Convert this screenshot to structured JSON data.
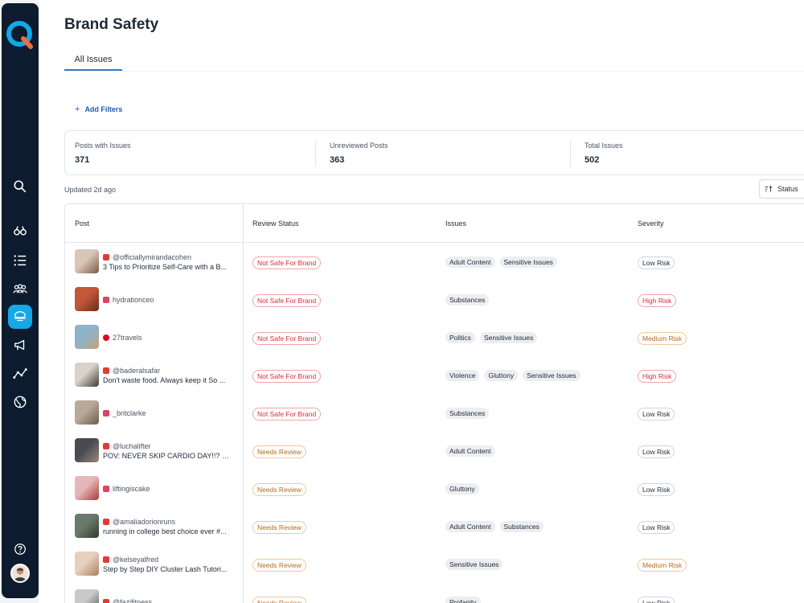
{
  "page": {
    "title": "Brand Safety"
  },
  "tabs": [
    {
      "label": "All Issues",
      "active": true
    }
  ],
  "filters": {
    "add_label": "Add Filters"
  },
  "stats": [
    {
      "label": "Posts with Issues",
      "value": "371"
    },
    {
      "label": "Unreviewed Posts",
      "value": "363"
    },
    {
      "label": "Total Issues",
      "value": "502"
    }
  ],
  "updated": "Updated 2d ago",
  "sort": {
    "label": "Status"
  },
  "table": {
    "headers": [
      "Post",
      "Review Status",
      "Issues",
      "Severity"
    ],
    "rows": [
      {
        "platform": "youtube",
        "handle": "@officiallymirandacohen",
        "caption": "3 Tips to Prioritize Self-Care with a B...",
        "status": "Not Safe For Brand",
        "issues": [
          "Adult Content",
          "Sensitive Issues"
        ],
        "severity": "Low Risk"
      },
      {
        "platform": "instagram",
        "handle": "hydrationceo",
        "caption": "",
        "status": "Not Safe For Brand",
        "issues": [
          "Substances"
        ],
        "severity": "High Risk"
      },
      {
        "platform": "pinterest",
        "handle": "27travels",
        "caption": "",
        "status": "Not Safe For Brand",
        "issues": [
          "Politics",
          "Sensitive Issues"
        ],
        "severity": "Medium Risk"
      },
      {
        "platform": "youtube",
        "handle": "@baderalsafar",
        "caption": "Don't waste food. Always keep it So ...",
        "status": "Not Safe For Brand",
        "issues": [
          "Violence",
          "Gluttony",
          "Sensitive Issues"
        ],
        "severity": "High Risk"
      },
      {
        "platform": "instagram",
        "handle": "_britclarke",
        "caption": "",
        "status": "Not Safe For Brand",
        "issues": [
          "Substances"
        ],
        "severity": "Low Risk"
      },
      {
        "platform": "youtube",
        "handle": "@luchalifter",
        "caption": "POV: NEVER SKIP CARDIO DAY!!? 😻...",
        "status": "Needs Review",
        "issues": [
          "Adult Content"
        ],
        "severity": "Low Risk"
      },
      {
        "platform": "instagram",
        "handle": "liftingiscake",
        "caption": "",
        "status": "Needs Review",
        "issues": [
          "Gluttony"
        ],
        "severity": "Low Risk"
      },
      {
        "platform": "youtube",
        "handle": "@amaliadorionruns",
        "caption": "running in college best choice ever #...",
        "status": "Needs Review",
        "issues": [
          "Adult Content",
          "Substances"
        ],
        "severity": "Low Risk"
      },
      {
        "platform": "youtube",
        "handle": "@kelseyalfred",
        "caption": "Step by Step DIY Cluster Lash Tutori...",
        "status": "Needs Review",
        "issues": [
          "Sensitive Issues"
        ],
        "severity": "Medium Risk"
      },
      {
        "platform": "youtube",
        "handle": "@fazifitness",
        "caption": "",
        "status": "Needs Review",
        "issues": [
          "Profanity"
        ],
        "severity": "Low Risk"
      }
    ]
  },
  "colors": {
    "sidebar": "#0c1b2e",
    "accent": "#14a8e6",
    "danger": "#d32f2f",
    "warning": "#b86a1b"
  },
  "icons": [
    "logo-icon",
    "search-icon",
    "binoculars-icon",
    "list-icon",
    "users-icon",
    "shield-icon",
    "megaphone-icon",
    "analytics-icon",
    "globe-icon",
    "help-icon"
  ]
}
